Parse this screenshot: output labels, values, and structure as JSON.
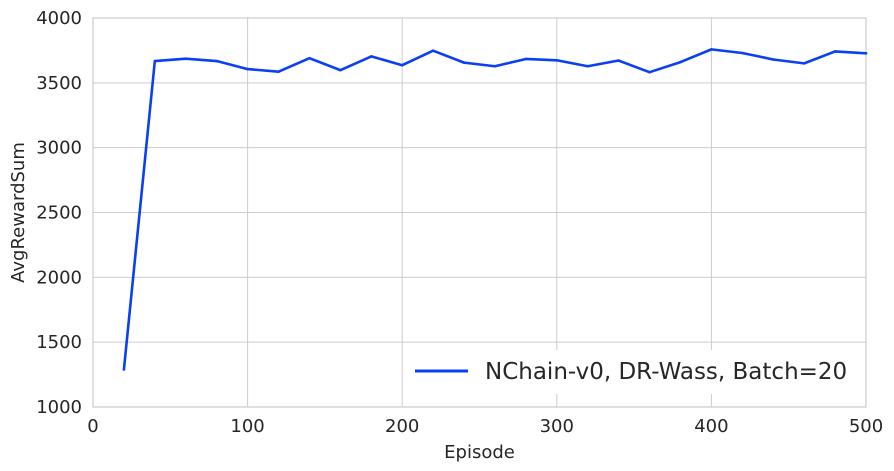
{
  "chart_data": {
    "type": "line",
    "title": "",
    "xlabel": "Episode",
    "ylabel": "AvgRewardSum",
    "xlim": [
      0,
      500
    ],
    "ylim": [
      1000,
      4000
    ],
    "xticks": [
      0,
      100,
      200,
      300,
      400,
      500
    ],
    "yticks": [
      1000,
      1500,
      2000,
      2500,
      3000,
      3500,
      4000
    ],
    "xtick_labels": [
      "0",
      "100",
      "200",
      "300",
      "400",
      "500"
    ],
    "ytick_labels": [
      "1000",
      "1500",
      "2000",
      "2500",
      "3000",
      "3500",
      "4000"
    ],
    "grid": true,
    "legend_position": "lower-right",
    "series": [
      {
        "name": "NChain-v0, DR-Wass, Batch=20",
        "color": "#0a3ff5",
        "x": [
          20,
          40,
          60,
          80,
          100,
          120,
          140,
          160,
          180,
          200,
          220,
          240,
          260,
          280,
          300,
          320,
          340,
          360,
          380,
          400,
          420,
          440,
          460,
          480,
          500
        ],
        "y": [
          1290,
          3668,
          3686,
          3668,
          3606,
          3586,
          3690,
          3598,
          3704,
          3636,
          3748,
          3656,
          3628,
          3684,
          3674,
          3628,
          3672,
          3582,
          3660,
          3758,
          3730,
          3680,
          3650,
          3742,
          3728
        ]
      }
    ]
  }
}
